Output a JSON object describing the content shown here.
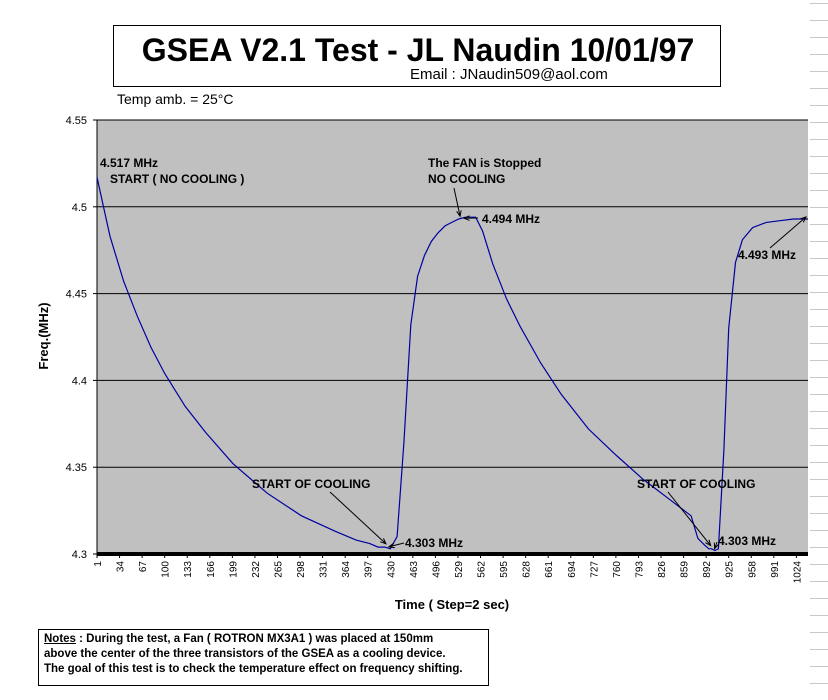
{
  "chart_data": {
    "type": "line",
    "title": "GSEA V2.1 Test - JL Naudin 10/01/97",
    "subtitle": "Email : JNaudin509@aol.com",
    "temperature_note": "Temp amb. = 25°C",
    "xlabel": "Time ( Step=2 sec)",
    "ylabel": "Freq.(MHz)",
    "ylim": [
      4.3,
      4.55
    ],
    "xlim": [
      1,
      1041
    ],
    "y_ticks": [
      "4.3",
      "4.35",
      "4.4",
      "4.45",
      "4.5",
      "4.55"
    ],
    "x_ticks": [
      "1",
      "34",
      "67",
      "100",
      "133",
      "166",
      "199",
      "232",
      "265",
      "298",
      "331",
      "364",
      "397",
      "430",
      "463",
      "496",
      "529",
      "562",
      "595",
      "628",
      "661",
      "694",
      "727",
      "760",
      "793",
      "826",
      "859",
      "892",
      "925",
      "958",
      "991",
      "1024"
    ],
    "grid": "horizontal",
    "legend": "none",
    "plot_background": "#c0c0c0",
    "line_color": "#0000a0",
    "series": [
      {
        "x": [
          1,
          20,
          40,
          60,
          80,
          100,
          130,
          160,
          200,
          250,
          300,
          350,
          380,
          400,
          412,
          422,
          430,
          440,
          450,
          460,
          470,
          480,
          490,
          500,
          510,
          520,
          530,
          540,
          545,
          555,
          565,
          580,
          600,
          620,
          650,
          680,
          720,
          760,
          800,
          840,
          870,
          880,
          890,
          896,
          900,
          905,
          910,
          918,
          925,
          935,
          945,
          960,
          980,
          1000,
          1020,
          1041
        ],
        "y": [
          4.517,
          4.483,
          4.457,
          4.437,
          4.419,
          4.404,
          4.385,
          4.37,
          4.352,
          4.335,
          4.322,
          4.313,
          4.308,
          4.306,
          4.304,
          4.304,
          4.303,
          4.31,
          4.365,
          4.432,
          4.46,
          4.472,
          4.48,
          4.485,
          4.489,
          4.491,
          4.493,
          4.494,
          4.494,
          4.494,
          4.486,
          4.467,
          4.447,
          4.431,
          4.41,
          4.392,
          4.372,
          4.357,
          4.343,
          4.331,
          4.322,
          4.309,
          4.305,
          4.303,
          4.303,
          4.302,
          4.303,
          4.36,
          4.43,
          4.468,
          4.481,
          4.488,
          4.491,
          4.492,
          4.493,
          4.493
        ]
      }
    ],
    "annotations": [
      {
        "text": "4.517 MHz",
        "x": 1,
        "y": 4.517
      },
      {
        "text": "START ( NO COOLING )",
        "x": 1,
        "y": 4.517
      },
      {
        "text": "The FAN is Stopped",
        "x": 535,
        "y": 4.494
      },
      {
        "text": "NO COOLING",
        "x": 535,
        "y": 4.494
      },
      {
        "text": "4.494 MHz",
        "x": 535,
        "y": 4.494
      },
      {
        "text": "4.493 MHz",
        "x": 1041,
        "y": 4.493
      },
      {
        "text": "START OF COOLING",
        "x": 428,
        "y": 4.303
      },
      {
        "text": "4.303 MHz",
        "x": 428,
        "y": 4.303
      },
      {
        "text": "START OF COOLING",
        "x": 903,
        "y": 4.302
      },
      {
        "text": "4.303 MHz",
        "x": 903,
        "y": 4.302
      }
    ]
  },
  "notes": {
    "label": "Notes",
    "line1": " : During the test, a Fan ( ROTRON MX3A1 ) was placed at 150mm",
    "line2": "above the center of the three transistors of the GSEA as a cooling device.",
    "line3": "The goal of this test is to check the temperature effect on frequency shifting."
  }
}
